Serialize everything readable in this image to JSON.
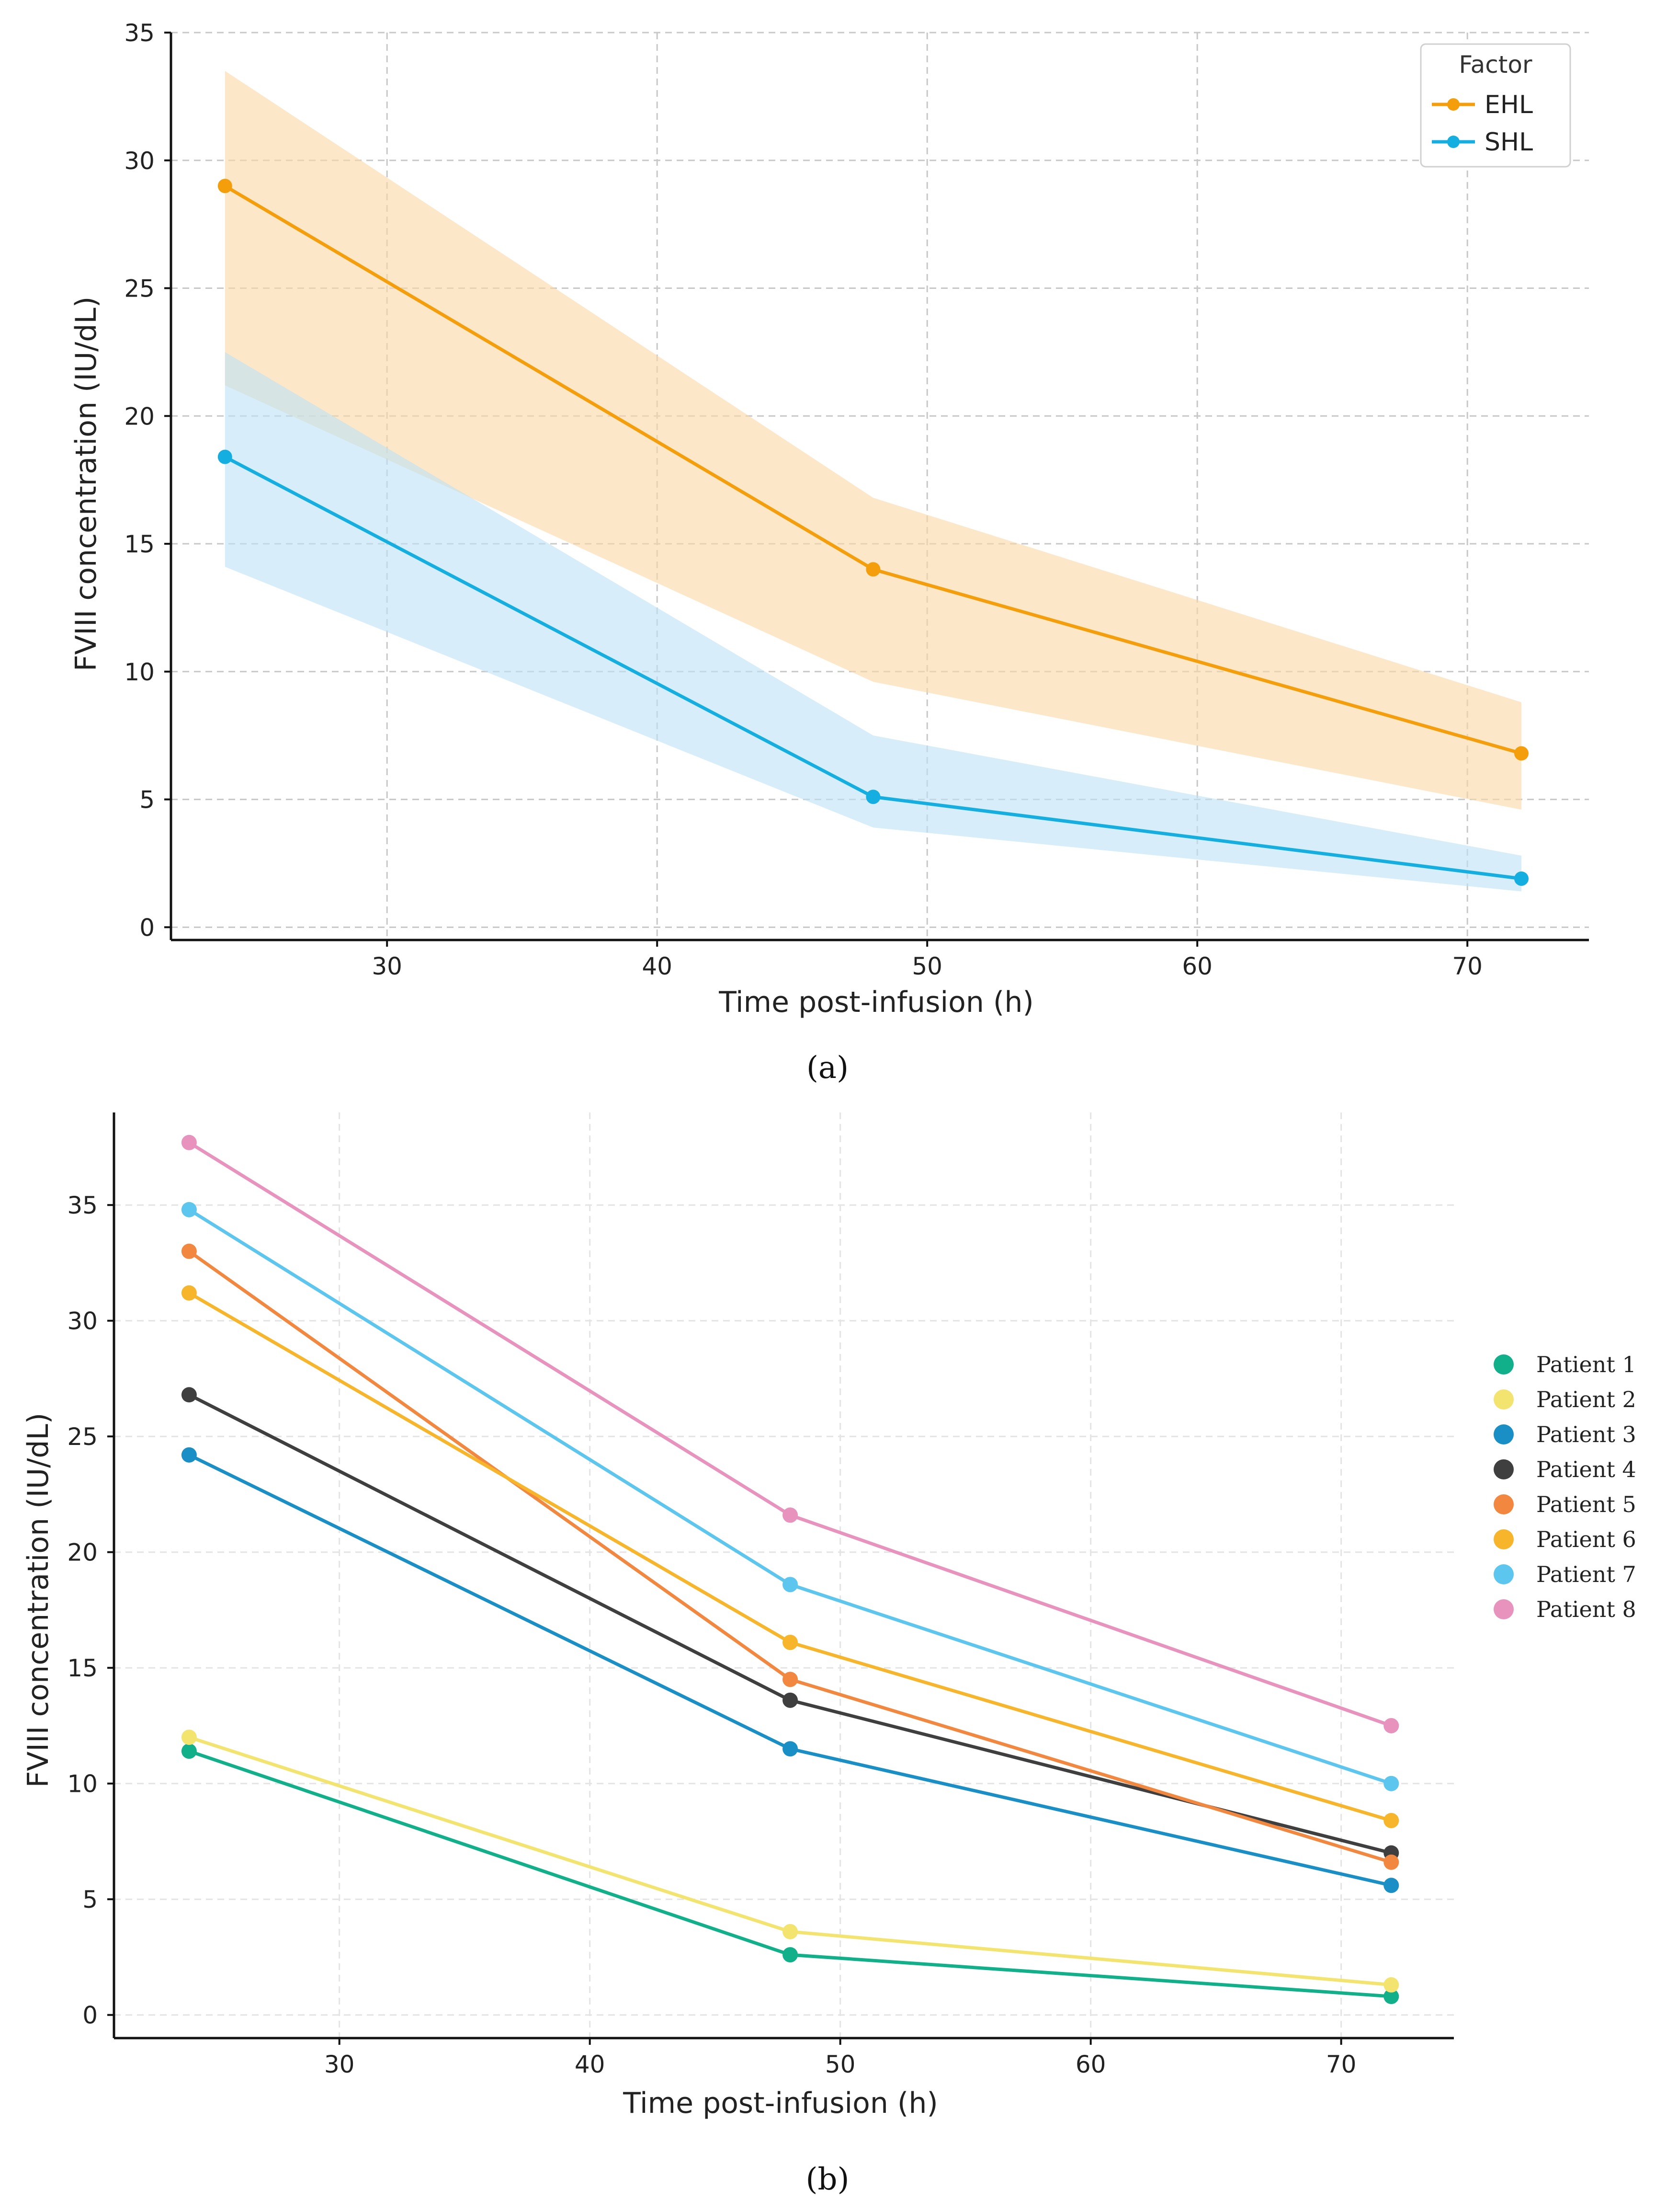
{
  "chart_data": [
    {
      "type": "line",
      "panel_label": "(a)",
      "title": "",
      "xlabel": "Time post-infusion (h)",
      "ylabel": "FVIII concentration (IU/dL)",
      "xlim": [
        22,
        74.5
      ],
      "ylim": [
        -0.5,
        35
      ],
      "xticks": [
        30,
        40,
        50,
        60,
        70
      ],
      "yticks": [
        0,
        5,
        10,
        15,
        20,
        25,
        30,
        35
      ],
      "grid": true,
      "legend": {
        "title": "Factor",
        "position": "top-right"
      },
      "x": [
        24,
        48,
        72
      ],
      "series": [
        {
          "name": "EHL",
          "color": "#F59E0B",
          "band_color": "#FCD9A8",
          "values": [
            29.0,
            14.0,
            6.8
          ],
          "lower": [
            21.2,
            9.6,
            4.6
          ],
          "upper": [
            33.5,
            16.8,
            8.8
          ]
        },
        {
          "name": "SHL",
          "color": "#15AEE0",
          "band_color": "#BEE2F5",
          "values": [
            18.4,
            5.1,
            1.9
          ],
          "lower": [
            14.1,
            3.9,
            1.4
          ],
          "upper": [
            22.5,
            7.5,
            2.8
          ]
        }
      ]
    },
    {
      "type": "line",
      "panel_label": "(b)",
      "title": "",
      "xlabel": "Time post-infusion (h)",
      "ylabel": "FVIII concentration (IU/dL)",
      "xlim": [
        21,
        74.5
      ],
      "ylim": [
        -1,
        39
      ],
      "xticks": [
        30,
        40,
        50,
        60,
        70
      ],
      "yticks": [
        0,
        5,
        10,
        15,
        20,
        25,
        30,
        35
      ],
      "grid": true,
      "legend": {
        "title": "",
        "position": "right"
      },
      "x": [
        24,
        48,
        72
      ],
      "series": [
        {
          "name": "Patient 1",
          "color": "#12B08A",
          "values": [
            11.4,
            2.6,
            0.8
          ]
        },
        {
          "name": "Patient 2",
          "color": "#F3E46F",
          "values": [
            12.0,
            3.6,
            1.3
          ]
        },
        {
          "name": "Patient 3",
          "color": "#1A8FC6",
          "values": [
            24.2,
            11.5,
            5.6
          ]
        },
        {
          "name": "Patient 4",
          "color": "#3F3F3F",
          "values": [
            26.8,
            13.6,
            7.0
          ]
        },
        {
          "name": "Patient 5",
          "color": "#F2883F",
          "values": [
            33.0,
            14.5,
            6.6
          ]
        },
        {
          "name": "Patient 6",
          "color": "#F7B52C",
          "values": [
            31.2,
            16.1,
            8.4
          ]
        },
        {
          "name": "Patient 7",
          "color": "#5CC6EE",
          "values": [
            34.8,
            18.6,
            10.0
          ]
        },
        {
          "name": "Patient 8",
          "color": "#E893BE",
          "values": [
            37.7,
            21.6,
            12.5
          ]
        }
      ]
    }
  ]
}
